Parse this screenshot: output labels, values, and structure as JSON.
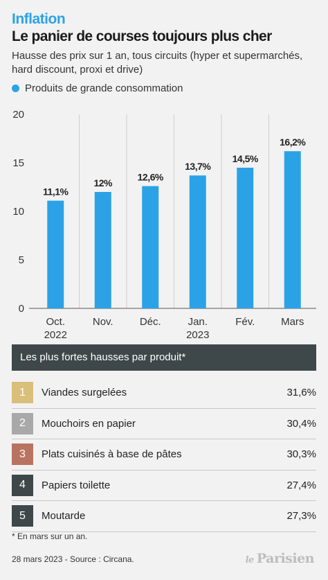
{
  "header": {
    "kicker": "Inflation",
    "title": "Le panier de courses toujours plus cher",
    "subtitle": "Hausse des prix sur 1 an, tous circuits (hyper et supermarchés, hard discount, proxi et drive)",
    "legend": "Produits de grande consommation"
  },
  "colors": {
    "accent": "#2ba2e6",
    "dark": "#3e4749"
  },
  "chart_data": {
    "type": "bar",
    "title": "Le panier de courses toujours plus cher",
    "categories": [
      [
        "Oct.",
        "2022"
      ],
      [
        "Nov."
      ],
      [
        "Déc."
      ],
      [
        "Jan.",
        "2023"
      ],
      [
        "Fév."
      ],
      [
        "Mars"
      ]
    ],
    "values": [
      11.1,
      12,
      12.6,
      13.7,
      14.5,
      16.2
    ],
    "value_labels": [
      "11,1%",
      "12%",
      "12,6%",
      "13,7%",
      "14,5%",
      "16,2%"
    ],
    "series": [
      {
        "name": "Produits de grande consommation",
        "values": [
          11.1,
          12,
          12.6,
          13.7,
          14.5,
          16.2
        ]
      }
    ],
    "ylim": [
      0,
      20
    ],
    "yticks": [
      0,
      5,
      10,
      15,
      20
    ],
    "grid": "vertical separators"
  },
  "table": {
    "header": "Les plus fortes hausses par produit*",
    "rows": [
      {
        "rank": "1",
        "label": "Viandes surgelées",
        "value": "31,6%",
        "color": "#d9bf79"
      },
      {
        "rank": "2",
        "label": "Mouchoirs en papier",
        "value": "30,4%",
        "color": "#a9a9a9"
      },
      {
        "rank": "3",
        "label": "Plats cuisinés à base de pâtes",
        "value": "30,3%",
        "color": "#b87460"
      },
      {
        "rank": "4",
        "label": "Papiers toilette",
        "value": "27,4%",
        "color": "#3e4749"
      },
      {
        "rank": "5",
        "label": "Moutarde",
        "value": "27,3%",
        "color": "#3e4749"
      }
    ]
  },
  "footer": {
    "footnote": "* En mars sur un an.",
    "source": "28 mars 2023 - Source : Circana.",
    "logo": "le Parisien"
  }
}
